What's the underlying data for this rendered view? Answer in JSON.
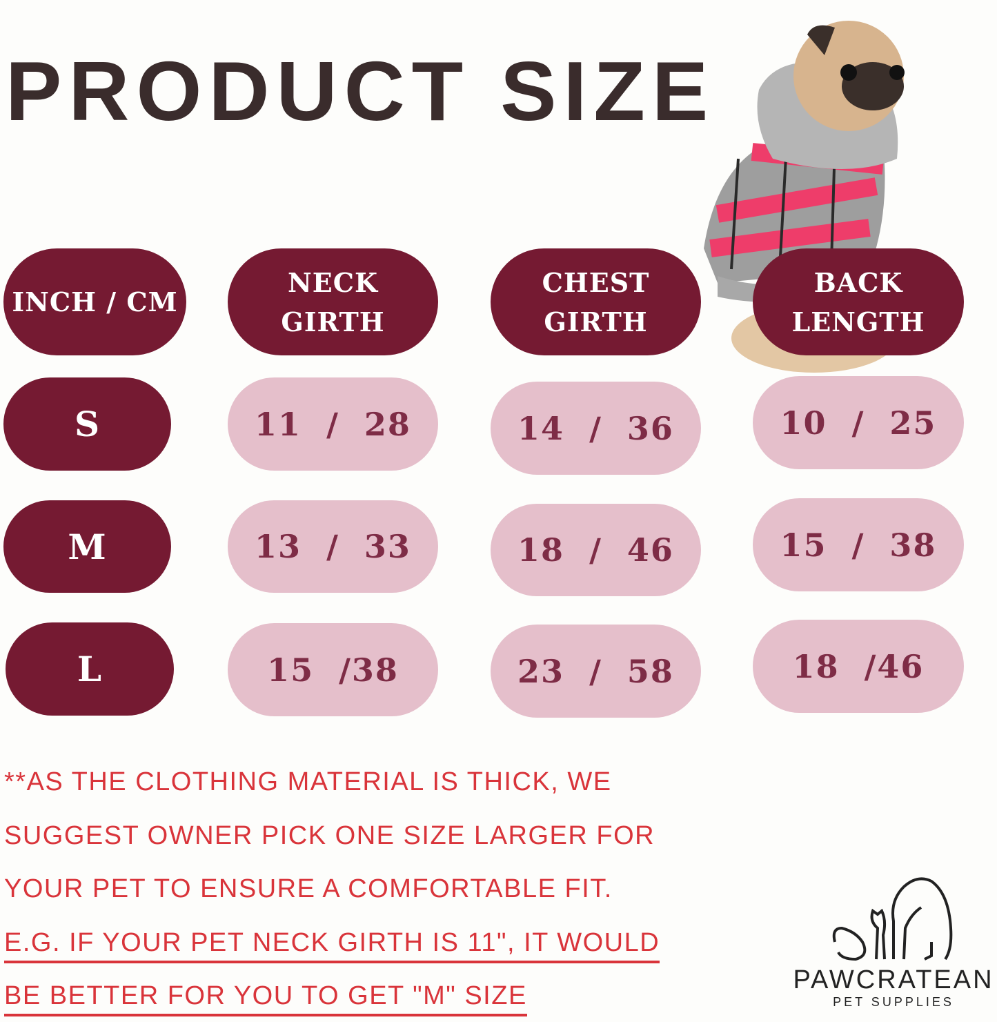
{
  "title": "PRODUCT SIZE",
  "colors": {
    "header_pill": "#751a32",
    "value_pill": "#e5bfcb",
    "value_text": "#7e2c46",
    "note_text": "#d9343a"
  },
  "table": {
    "corner": "INCH / CM",
    "headers": [
      {
        "line1": "NECK",
        "line2": "GIRTH"
      },
      {
        "line1": "CHEST",
        "line2": "GIRTH"
      },
      {
        "line1": "BACK",
        "line2": "LENGTH"
      }
    ],
    "rows": [
      {
        "size": "S",
        "values": [
          "11  /  28",
          "14  /  36",
          "10  /  25"
        ]
      },
      {
        "size": "M",
        "values": [
          "13  /  33",
          "18  /  46",
          "15  /  38"
        ]
      },
      {
        "size": "L",
        "values": [
          "15  /38",
          "23  /  58",
          "18  /46"
        ]
      }
    ]
  },
  "note": {
    "lines": [
      "**AS THE CLOTHING MATERIAL IS THICK, WE",
      "SUGGEST OWNER PICK ONE SIZE LARGER FOR",
      "YOUR PET TO ENSURE A COMFORTABLE FIT.",
      "E.G. IF YOUR PET NECK GIRTH IS 11\", IT WOULD",
      "BE BETTER FOR YOU TO GET  \"M\" SIZE"
    ]
  },
  "logo": {
    "brand": "PAWCRATEAN",
    "tagline": "PET SUPPLIES",
    "icon": "dog-and-cat-outline-icon"
  },
  "photo": {
    "icon": "pug-in-plaid-hoodie-photo"
  }
}
